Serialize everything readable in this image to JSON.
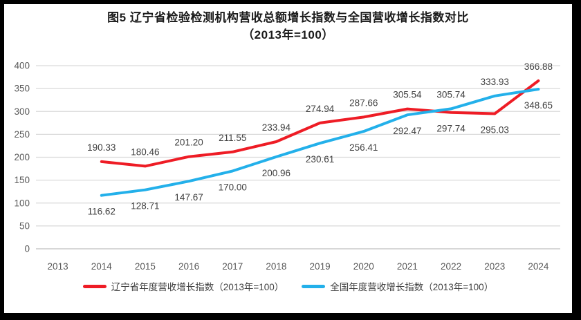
{
  "frame": {
    "border_color": "#000000",
    "background_color": "#ffffff"
  },
  "chart_data": {
    "type": "line",
    "title": "图5  辽宁省检验检测机构营收总额增长指数与全国营收增长指数对比",
    "subtitle": "（2013年=100）",
    "categories": [
      "2013",
      "2014",
      "2015",
      "2016",
      "2017",
      "2018",
      "2019",
      "2020",
      "2021",
      "2022",
      "2023",
      "2024"
    ],
    "series": [
      {
        "name": "辽宁省年度营收增长指数（2013年=100）",
        "color": "#ee1c25",
        "start_category": "2014",
        "values": [
          190.33,
          180.46,
          201.2,
          211.55,
          233.94,
          274.94,
          287.66,
          305.54,
          297.74,
          295.03,
          366.88
        ],
        "label_positions": [
          "above",
          "above",
          "above",
          "above",
          "above",
          "above",
          "above",
          "above",
          "below",
          "below",
          "above"
        ]
      },
      {
        "name": "全国年度营收增长指数（2013年=100）",
        "color": "#23b0ea",
        "start_category": "2014",
        "values": [
          116.62,
          128.71,
          147.67,
          170.0,
          200.96,
          230.61,
          256.41,
          292.47,
          305.74,
          333.93,
          348.65
        ],
        "label_positions": [
          "below",
          "below",
          "below",
          "below",
          "below",
          "below",
          "below",
          "below",
          "above",
          "above",
          "below"
        ]
      }
    ],
    "ylim": [
      0,
      400
    ],
    "ytick_step": 50,
    "grid": true,
    "legend_position": "bottom",
    "data_labels_decimals": 2,
    "colors": {
      "gridline": "#d9d9d9",
      "axis_line": "#bfbfbf",
      "axis_text": "#595959",
      "data_label_text": "#3f3f3f",
      "title_text": "#1a1a1a"
    }
  }
}
